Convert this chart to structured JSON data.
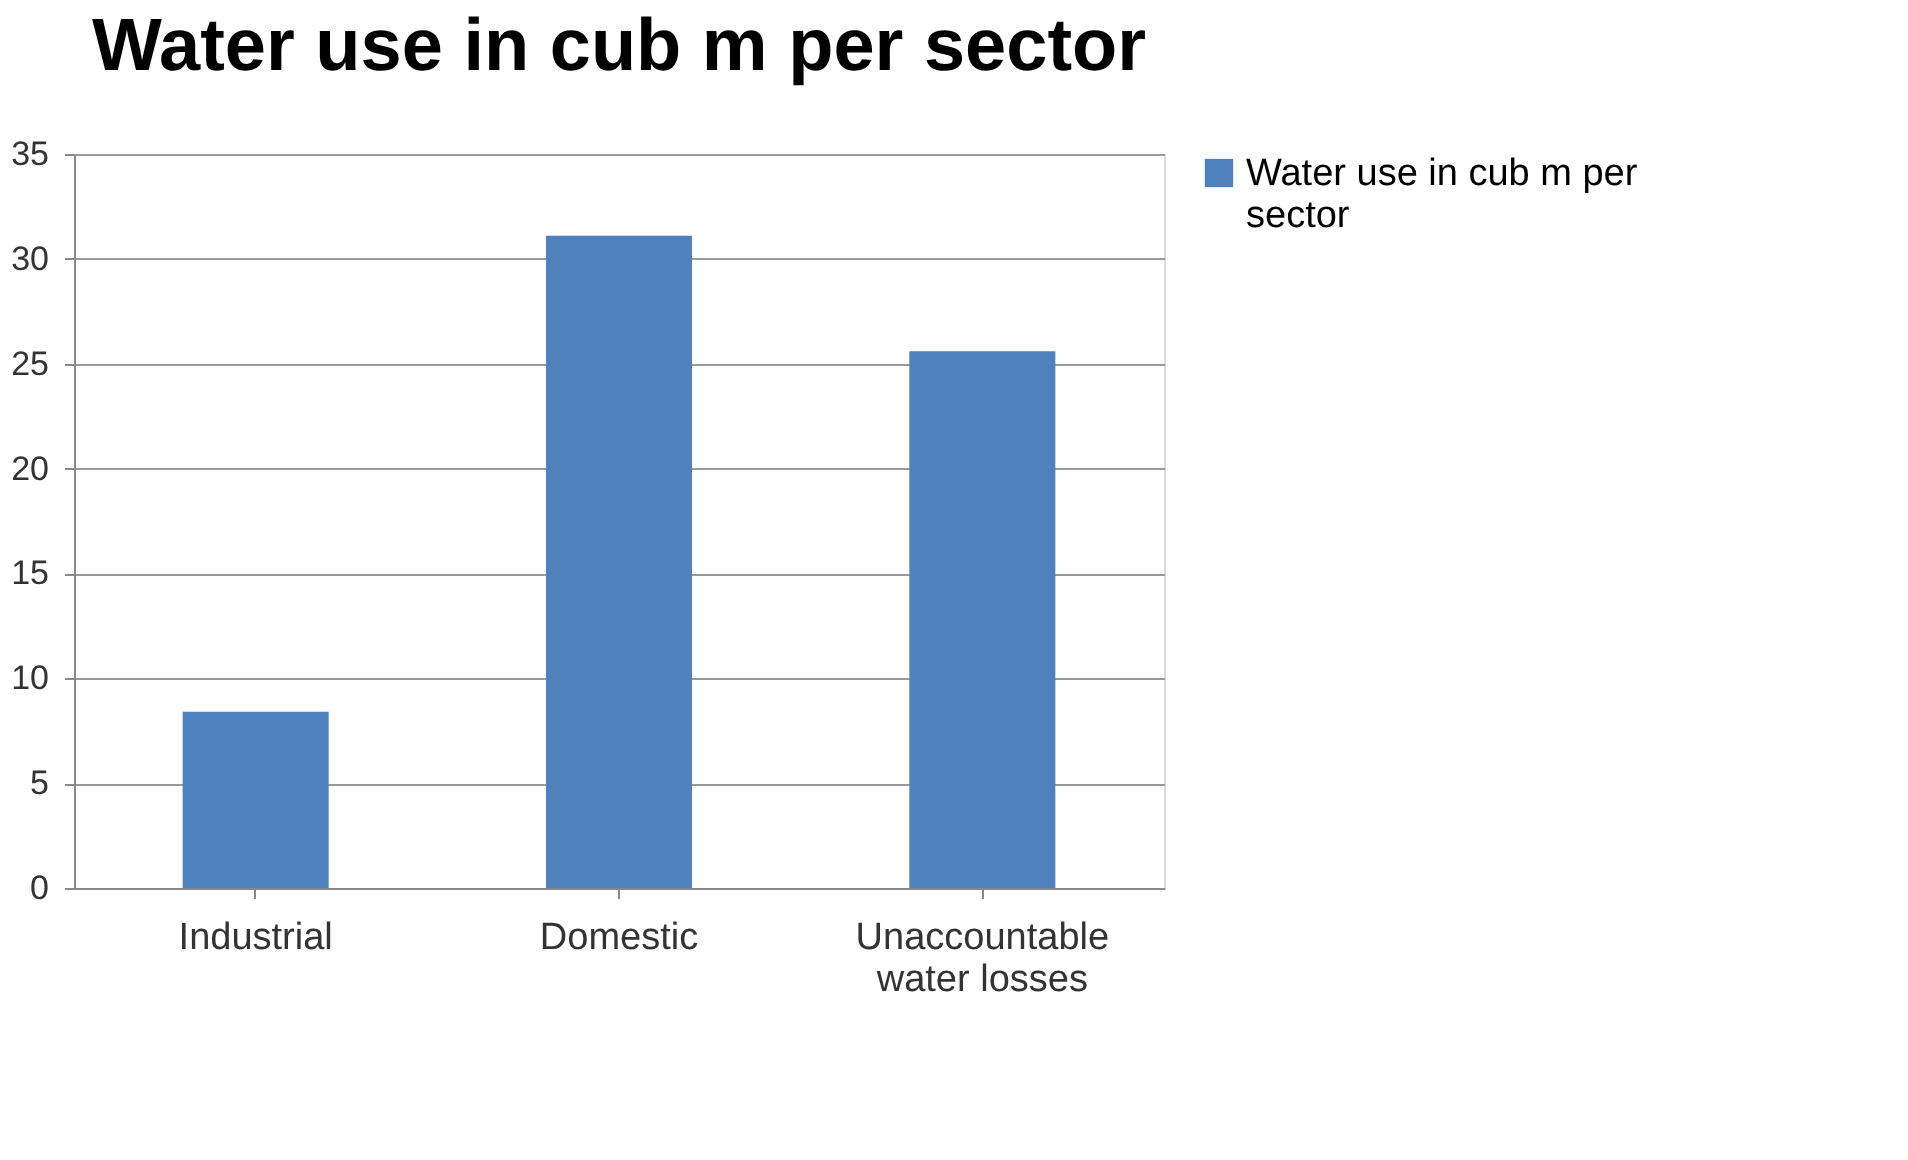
{
  "chart_data": {
    "type": "bar",
    "title": "Water use in cub m  per sector",
    "categories": [
      "Industrial",
      "Domestic",
      "Unaccountable water losses"
    ],
    "series": [
      {
        "name": "Water use in cub m  per sector",
        "color": "#4f81bd",
        "values": [
          8.4,
          31.1,
          25.6
        ]
      }
    ],
    "ylim": [
      0,
      35
    ],
    "yticks": [
      0,
      5,
      10,
      15,
      20,
      25,
      30,
      35
    ],
    "grid": "y",
    "legend": "right"
  }
}
